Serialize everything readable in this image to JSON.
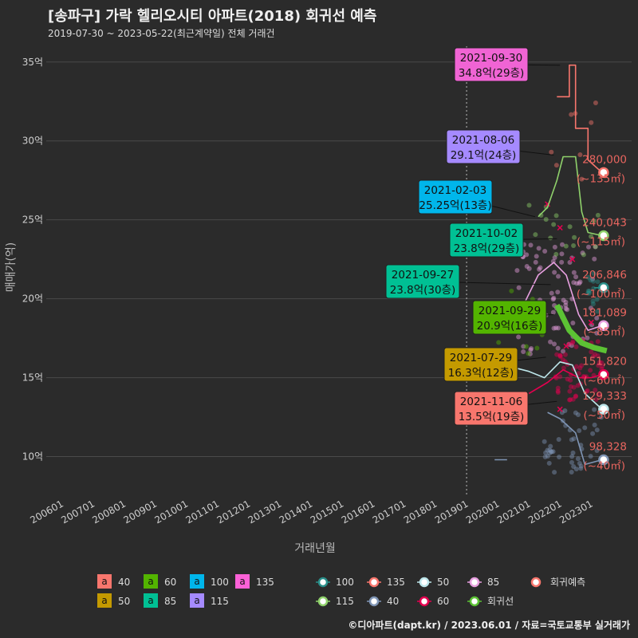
{
  "title": "[송파구] 가락 헬리오시티 아파트(2018) 회귀선 예측",
  "subtitle": "2019-07-30 ~ 2023-05-22(최근계약일) 전체 거래건",
  "footer": "©디아파트(dapt.kr) / 2023.06.01 / 자료=국토교통부 실거래가",
  "colors": {
    "background": "#2b2b2b",
    "grid": "#4a4a4a",
    "s40": "#f8766d",
    "s50": "#c49a00",
    "s60": "#53b400",
    "s85": "#00c094",
    "s100": "#00b6eb",
    "s115": "#a58aff",
    "s135": "#fb61d7",
    "label_red": "#e8655f"
  },
  "chart_data": {
    "type": "scatter",
    "title": "[송파구] 가락 헬리오시티 아파트(2018) 회귀선 예측",
    "xlabel": "거래년월",
    "ylabel": "매매가(억)",
    "ylim": [
      7.5,
      36
    ],
    "xlim": [
      2005.5,
      2024.3
    ],
    "yticks": [
      10,
      15,
      20,
      25,
      30,
      35
    ],
    "ytick_labels": [
      "10억",
      "15억",
      "20억",
      "25억",
      "30억",
      "35억"
    ],
    "xticks": [
      2006,
      2007,
      2008,
      2009,
      2010,
      2011,
      2012,
      2013,
      2014,
      2015,
      2016,
      2017,
      2018,
      2019,
      2020,
      2021,
      2022,
      2023
    ],
    "xtick_labels": [
      "200601",
      "200701",
      "200801",
      "200901",
      "201001",
      "201101",
      "201201",
      "201301",
      "201401",
      "201501",
      "201601",
      "201701",
      "201801",
      "201901",
      "202001",
      "202101",
      "202201",
      "202301"
    ],
    "vline_x": 2019.0,
    "series": [
      {
        "name": "135",
        "color": "#f8766d",
        "line": [
          [
            2021.9,
            32.8
          ],
          [
            2022.3,
            32.8
          ],
          [
            2022.3,
            34.8
          ],
          [
            2022.5,
            34.8
          ],
          [
            2022.5,
            30.8
          ],
          [
            2022.9,
            30.8
          ],
          [
            2022.9,
            28.8
          ],
          [
            2023.35,
            28.0
          ]
        ],
        "end": [
          2023.4,
          28.0
        ]
      },
      {
        "name": "115",
        "color": "#8fd16b",
        "line": [
          [
            2021.3,
            25.2
          ],
          [
            2021.6,
            25.8
          ],
          [
            2021.9,
            27.5
          ],
          [
            2022.1,
            29.0
          ],
          [
            2022.5,
            29.0
          ],
          [
            2022.7,
            25.5
          ],
          [
            2022.9,
            24.2
          ],
          [
            2023.35,
            24.0
          ]
        ],
        "end": [
          2023.4,
          24.0
        ]
      },
      {
        "name": "100",
        "color": "#2a8f8a",
        "line": [
          [
            2023.1,
            20.7
          ],
          [
            2023.35,
            20.7
          ]
        ],
        "end": [
          2023.4,
          20.7
        ]
      },
      {
        "name": "85",
        "color": "#e8a0e0",
        "line": [
          [
            2020.2,
            17.8
          ],
          [
            2020.8,
            19.5
          ],
          [
            2021.3,
            21.5
          ],
          [
            2021.8,
            22.3
          ],
          [
            2022.2,
            21.5
          ],
          [
            2022.6,
            19.0
          ],
          [
            2022.9,
            18.0
          ],
          [
            2023.35,
            18.3
          ]
        ],
        "end": [
          2023.4,
          18.3
        ]
      },
      {
        "name": "60",
        "color": "#e4004f",
        "line": [
          [
            2021.0,
            14.0
          ],
          [
            2021.6,
            14.7
          ],
          [
            2022.1,
            15.5
          ],
          [
            2022.6,
            15.0
          ],
          [
            2023.0,
            15.0
          ],
          [
            2023.35,
            15.2
          ]
        ],
        "end": [
          2023.4,
          15.2
        ]
      },
      {
        "name": "50",
        "color": "#bde6ea",
        "line": [
          [
            2020.2,
            15.8
          ],
          [
            2021.0,
            15.4
          ],
          [
            2021.5,
            15.0
          ],
          [
            2022.0,
            16.0
          ],
          [
            2022.4,
            15.8
          ],
          [
            2022.8,
            14.0
          ],
          [
            2023.35,
            13.0
          ]
        ],
        "end": [
          2023.4,
          13.0
        ]
      },
      {
        "name": "40",
        "color": "#7f95b5",
        "line": [
          [
            2021.6,
            12.8
          ],
          [
            2022.0,
            12.4
          ],
          [
            2022.5,
            11.5
          ],
          [
            2022.8,
            9.5
          ],
          [
            2023.35,
            9.8
          ]
        ],
        "end": [
          2023.4,
          9.8
        ]
      },
      {
        "name": "회귀선",
        "color": "#5cc234",
        "line": [
          [
            2021.9,
            19.6
          ],
          [
            2022.3,
            18.0
          ],
          [
            2022.7,
            17.2
          ],
          [
            2023.1,
            16.9
          ],
          [
            2023.5,
            16.7
          ]
        ],
        "end": null
      }
    ],
    "callouts": [
      {
        "date": "2021-09-30",
        "price": "34.8억(29층)",
        "fill": "#f064d4",
        "text_color": "#111111"
      },
      {
        "date": "2021-08-06",
        "price": "29.1억(24층)",
        "fill": "#a58aff",
        "text_color": "#111111"
      },
      {
        "date": "2021-02-03",
        "price": "25.25억(13층)",
        "fill": "#00b6eb",
        "text_color": "#111111"
      },
      {
        "date": "2021-10-02",
        "price": "23.8억(29층)",
        "fill": "#00c094",
        "text_color": "#111111"
      },
      {
        "date": "2021-09-27",
        "price": "23.8억(30층)",
        "fill": "#00c094",
        "text_color": "#111111"
      },
      {
        "date": "2021-09-29",
        "price": "20.9억(16층)",
        "fill": "#53b400",
        "text_color": "#111111"
      },
      {
        "date": "2021-07-29",
        "price": "16.3억(12층)",
        "fill": "#c49a00",
        "text_color": "#111111"
      },
      {
        "date": "2021-11-06",
        "price": "13.5억(19층)",
        "fill": "#f8766d",
        "text_color": "#111111"
      }
    ],
    "predictions": [
      {
        "value": "280,000",
        "area": "(~135㎡)"
      },
      {
        "value": "240,043",
        "area": "(~115㎡)"
      },
      {
        "value": "206,846",
        "area": "(~100㎡)"
      },
      {
        "value": "181,089",
        "area": "(~85㎡)"
      },
      {
        "value": "151,820",
        "area": "(~60㎡)"
      },
      {
        "value": "129,333",
        "area": "(~50㎡)"
      },
      {
        "value": "98,328",
        "area": "(~40㎡)"
      }
    ],
    "legend_fill": [
      {
        "label": "40",
        "color": "#f8766d"
      },
      {
        "label": "60",
        "color": "#53b400"
      },
      {
        "label": "100",
        "color": "#00b6eb"
      },
      {
        "label": "135",
        "color": "#fb61d7"
      },
      {
        "label": "50",
        "color": "#c49a00"
      },
      {
        "label": "85",
        "color": "#00c094"
      },
      {
        "label": "115",
        "color": "#a58aff"
      }
    ],
    "legend_key_glyph": "a",
    "legend_line": [
      {
        "label": "100",
        "color": "#2a8f8a"
      },
      {
        "label": "135",
        "color": "#f8766d"
      },
      {
        "label": "50",
        "color": "#bde6ea"
      },
      {
        "label": "85",
        "color": "#e8a0e0"
      },
      {
        "label": "115",
        "color": "#8fd16b"
      },
      {
        "label": "40",
        "color": "#7f95b5"
      },
      {
        "label": "60",
        "color": "#e4004f"
      },
      {
        "label": "회귀선",
        "color": "#5cc234"
      }
    ],
    "legend_pred": {
      "label": "회귀예측",
      "color": "#f8766d"
    }
  }
}
